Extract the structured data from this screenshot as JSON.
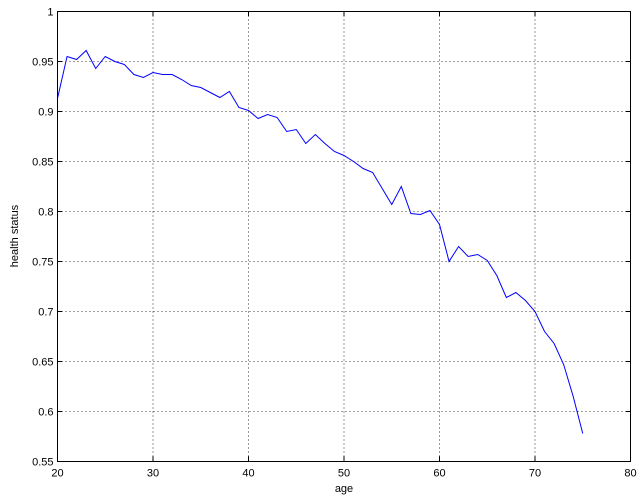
{
  "chart_data": {
    "type": "line",
    "xlabel": "age",
    "ylabel": "health status",
    "xlim": [
      20,
      80
    ],
    "ylim": [
      0.55,
      1
    ],
    "xticks": [
      20,
      30,
      40,
      50,
      60,
      70,
      80
    ],
    "yticks": [
      0.55,
      0.6,
      0.65,
      0.7,
      0.75,
      0.8,
      0.85,
      0.9,
      0.95,
      1
    ],
    "xtick_labels": [
      "20",
      "30",
      "40",
      "50",
      "60",
      "70",
      "80"
    ],
    "ytick_labels": [
      "0.55",
      "0.6",
      "0.65",
      "0.7",
      "0.75",
      "0.8",
      "0.85",
      "0.9",
      "0.95",
      "1"
    ],
    "grid": true,
    "line_color": "#0000ff",
    "series": [
      {
        "x": [
          20,
          21,
          22,
          23,
          24,
          25,
          26,
          27,
          28,
          29,
          30,
          31,
          32,
          33,
          34,
          35,
          36,
          37,
          38,
          39,
          40,
          41,
          42,
          43,
          44,
          45,
          46,
          47,
          48,
          49,
          50,
          51,
          52,
          53,
          54,
          55,
          56,
          57,
          58,
          59,
          60,
          61,
          62,
          63,
          64,
          65,
          66,
          67,
          68,
          69,
          70,
          71,
          72,
          73,
          74,
          75
        ],
        "values": [
          0.913,
          0.955,
          0.952,
          0.961,
          0.943,
          0.955,
          0.95,
          0.947,
          0.937,
          0.934,
          0.939,
          0.937,
          0.937,
          0.932,
          0.926,
          0.924,
          0.919,
          0.914,
          0.92,
          0.904,
          0.901,
          0.893,
          0.897,
          0.894,
          0.88,
          0.882,
          0.868,
          0.877,
          0.868,
          0.86,
          0.856,
          0.85,
          0.843,
          0.839,
          0.823,
          0.807,
          0.825,
          0.798,
          0.797,
          0.801,
          0.787,
          0.75,
          0.765,
          0.755,
          0.757,
          0.751,
          0.736,
          0.714,
          0.719,
          0.711,
          0.7,
          0.68,
          0.668,
          0.647,
          0.615,
          0.578
        ]
      }
    ]
  }
}
